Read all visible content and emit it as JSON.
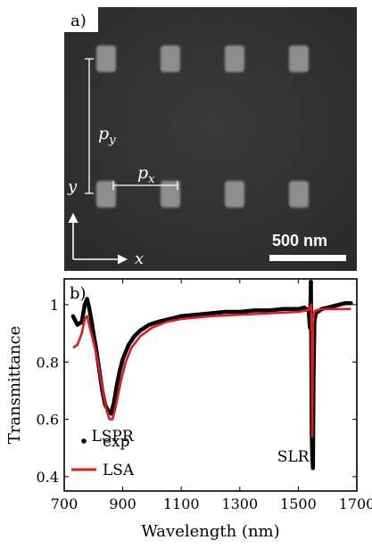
{
  "panel_a": {
    "label": "a)",
    "scale_bar_label": "500 nm",
    "labels": {
      "py": "p",
      "py_sub": "y",
      "px": "p",
      "px_sub": "x",
      "y_axis": "y",
      "x_axis": "x"
    },
    "colors": {
      "background": "#333333",
      "particle": "#8e8e8e",
      "annotation": "#ffffff"
    },
    "particles": {
      "rows": 2,
      "cols": 4
    }
  },
  "chart_data": {
    "type": "line",
    "panel_label": "b)",
    "xlabel": "Wavelength (nm)",
    "ylabel": "Transmittance",
    "xlim": [
      700,
      1700
    ],
    "ylim": [
      0.35,
      1.09
    ],
    "xticks": [
      700,
      900,
      1100,
      1300,
      1500,
      1700
    ],
    "yticks": [
      0.4,
      0.6,
      0.8,
      1
    ],
    "ytick_labels": [
      "0.4",
      "0.6",
      "0.8",
      "1"
    ],
    "grid": false,
    "legend_position": "bottom-left",
    "series": [
      {
        "name": "exp",
        "style": "dots",
        "color": "#000000",
        "x": [
          730,
          745,
          760,
          770,
          778,
          785,
          792,
          800,
          810,
          820,
          830,
          840,
          850,
          860,
          870,
          880,
          890,
          900,
          920,
          940,
          960,
          990,
          1020,
          1060,
          1100,
          1150,
          1200,
          1250,
          1300,
          1350,
          1400,
          1450,
          1500,
          1520,
          1535,
          1540,
          1543,
          1546,
          1548,
          1550,
          1552,
          1555,
          1560,
          1580,
          1600,
          1620,
          1640,
          1660,
          1680
        ],
        "y": [
          0.96,
          0.93,
          0.94,
          1.0,
          1.02,
          0.99,
          0.95,
          0.9,
          0.84,
          0.77,
          0.7,
          0.65,
          0.63,
          0.62,
          0.66,
          0.72,
          0.77,
          0.81,
          0.86,
          0.89,
          0.91,
          0.93,
          0.94,
          0.95,
          0.96,
          0.965,
          0.97,
          0.975,
          0.975,
          0.98,
          0.98,
          0.985,
          0.985,
          0.99,
          0.98,
          0.92,
          1.08,
          0.55,
          0.47,
          0.43,
          0.75,
          0.94,
          0.97,
          0.985,
          0.99,
          0.995,
          1.0,
          1.005,
          1.005
        ]
      },
      {
        "name": "LSA",
        "style": "line",
        "color": "#e8191c",
        "x": [
          730,
          745,
          760,
          770,
          778,
          785,
          795,
          805,
          815,
          825,
          835,
          845,
          855,
          865,
          875,
          885,
          895,
          910,
          930,
          960,
          1000,
          1050,
          1100,
          1200,
          1300,
          1400,
          1500,
          1530,
          1538,
          1541,
          1544,
          1546,
          1547,
          1548,
          1549,
          1550,
          1552,
          1555,
          1560,
          1580,
          1620,
          1680
        ],
        "y": [
          0.85,
          0.86,
          0.9,
          0.95,
          0.96,
          0.93,
          0.89,
          0.85,
          0.8,
          0.74,
          0.68,
          0.63,
          0.6,
          0.6,
          0.64,
          0.69,
          0.74,
          0.8,
          0.85,
          0.89,
          0.92,
          0.94,
          0.95,
          0.96,
          0.965,
          0.97,
          0.975,
          0.98,
          0.985,
          0.99,
          1.0,
          0.9,
          0.7,
          0.54,
          0.8,
          0.93,
          0.96,
          0.975,
          0.98,
          0.985,
          0.985,
          0.985
        ]
      }
    ],
    "annotations": [
      {
        "text": "LSPR",
        "x": 860,
        "y": 0.57
      },
      {
        "text": "SLR",
        "x": 1495,
        "y": 0.5
      }
    ]
  }
}
